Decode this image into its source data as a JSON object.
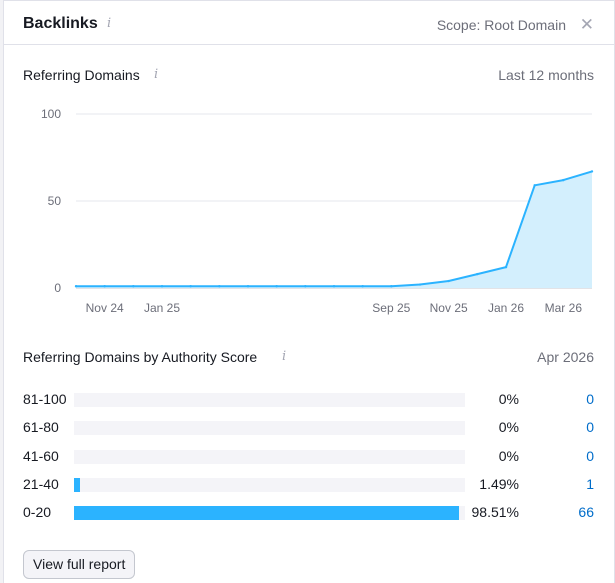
{
  "header": {
    "title": "Backlinks",
    "info_icon": "info-icon",
    "scope": "Scope: Root Domain",
    "close_icon": "close-icon"
  },
  "referring": {
    "title": "Referring Domains",
    "period": "Last 12 months"
  },
  "chart_data": {
    "type": "area",
    "title": "Referring Domains",
    "xlabel": "",
    "ylabel": "",
    "ylim": [
      0,
      100
    ],
    "y_ticks": [
      0,
      50,
      100
    ],
    "x_tick_labels": [
      "Nov 24",
      "Jan 25",
      "Sep 25",
      "Nov 25",
      "Jan 26",
      "Mar 26"
    ],
    "x": [
      "Oct 24",
      "Nov 24",
      "Dec 24",
      "Jan 25",
      "Feb 25",
      "Mar 25",
      "Apr 25",
      "May 25",
      "Jun 25",
      "Jul 25",
      "Aug 25",
      "Sep 25",
      "Oct 25",
      "Nov 25",
      "Dec 25",
      "Jan 26",
      "Feb 26",
      "Mar 26",
      "Apr 26"
    ],
    "series": [
      {
        "values": [
          1,
          1,
          1,
          1,
          1,
          1,
          1,
          1,
          1,
          1,
          1,
          1,
          2,
          4,
          8,
          12,
          59,
          62,
          67
        ]
      }
    ],
    "grid": true,
    "colors": {
      "line": "#2bb3ff",
      "fill": "#d3effd"
    }
  },
  "authority": {
    "title": "Referring Domains by Authority Score",
    "date": "Apr 2026",
    "rows": [
      {
        "label": "81-100",
        "fraction": 0,
        "percent": "0%",
        "count": "0"
      },
      {
        "label": "61-80",
        "fraction": 0,
        "percent": "0%",
        "count": "0"
      },
      {
        "label": "41-60",
        "fraction": 0,
        "percent": "0%",
        "count": "0"
      },
      {
        "label": "21-40",
        "fraction": 0.0149,
        "percent": "1.49%",
        "count": "1"
      },
      {
        "label": "0-20",
        "fraction": 0.9851,
        "percent": "98.51%",
        "count": "66"
      }
    ]
  },
  "footer": {
    "button": "View full report"
  }
}
